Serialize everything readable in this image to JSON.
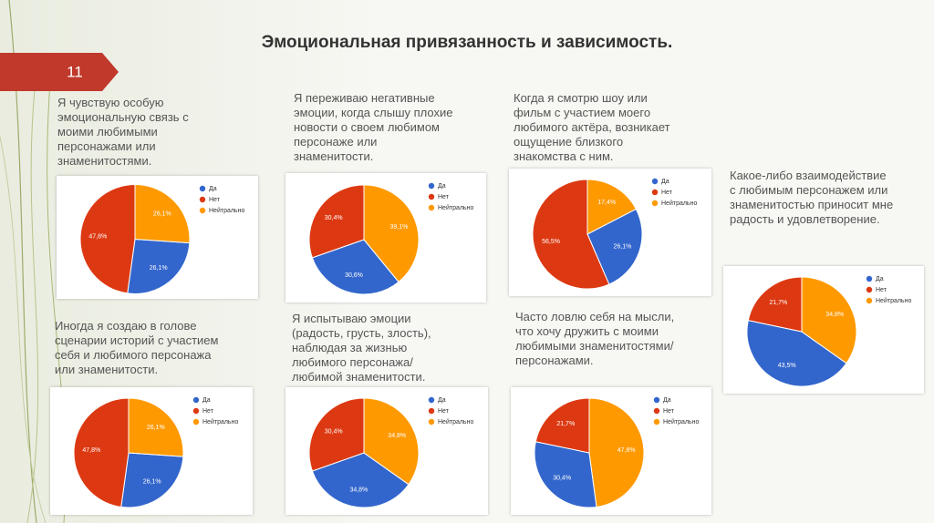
{
  "slide": {
    "title": "Эмоциональная привязанность и зависимость.",
    "number": "11"
  },
  "chart_data": [
    {
      "type": "pie",
      "title": "Я чувствую особую эмоциональную связь с моими любимыми персонажами или знаменитостями.",
      "categories": [
        "Да",
        "Нет",
        "Нейтрально"
      ],
      "values": [
        26.1,
        47.8,
        26.1
      ],
      "value_labels": [
        "26,1%",
        "47,8%",
        "26,1%"
      ],
      "colors": [
        "#3366cc",
        "#dc3912",
        "#ff9900"
      ]
    },
    {
      "type": "pie",
      "title": "Я переживаю негативные эмоции, когда слышу плохие новости о своем любимом персонаже или знаменитости.",
      "categories": [
        "Да",
        "Нет",
        "Нейтрально"
      ],
      "values": [
        30.6,
        30.4,
        39.1
      ],
      "value_labels": [
        "30,6%",
        "30,4%",
        "39,1%"
      ],
      "colors": [
        "#3366cc",
        "#dc3912",
        "#ff9900"
      ]
    },
    {
      "type": "pie",
      "title": "Когда я смотрю шоу или фильм с участием моего любимого актёра, возникает ощущение близкого знакомства с ним.",
      "categories": [
        "Да",
        "Нет",
        "Нейтрально"
      ],
      "values": [
        26.1,
        56.5,
        17.4
      ],
      "value_labels": [
        "26,1%",
        "56,5%",
        "17,4%"
      ],
      "colors": [
        "#3366cc",
        "#dc3912",
        "#ff9900"
      ]
    },
    {
      "type": "pie",
      "title": "Какое-либо взаимодействие с любимым персонажем или знаменитостью приносит мне радость и удовлетворение.",
      "categories": [
        "Да",
        "Нет",
        "Нейтрально"
      ],
      "values": [
        43.5,
        21.7,
        34.8
      ],
      "value_labels": [
        "43,5%",
        "21,7%",
        "34,8%"
      ],
      "colors": [
        "#3366cc",
        "#dc3912",
        "#ff9900"
      ]
    },
    {
      "type": "pie",
      "title": "Иногда я создаю в голове сценарии историй с участием себя и любимого персонажа или знаменитости.",
      "categories": [
        "Да",
        "Нет",
        "Нейтрально"
      ],
      "values": [
        26.1,
        47.8,
        26.1
      ],
      "value_labels": [
        "26,1%",
        "47,8%",
        "26,1%"
      ],
      "colors": [
        "#3366cc",
        "#dc3912",
        "#ff9900"
      ]
    },
    {
      "type": "pie",
      "title": "Я испытываю эмоции (радость, грусть, злость), наблюдая за жизнью любимого персонажа/любимой знаменитости.",
      "categories": [
        "Да",
        "Нет",
        "Нейтрально"
      ],
      "values": [
        34.8,
        30.4,
        34.8
      ],
      "value_labels": [
        "34,8%",
        "30,4%",
        "34,8%"
      ],
      "colors": [
        "#3366cc",
        "#dc3912",
        "#ff9900"
      ]
    },
    {
      "type": "pie",
      "title": "Часто ловлю себя на мысли, что хочу дружить с моими любимыми знаменитостями/персонажами.",
      "categories": [
        "Да",
        "Нет",
        "Нейтрально"
      ],
      "values": [
        30.4,
        21.7,
        47.8
      ],
      "value_labels": [
        "30,4%",
        "21,7%",
        "47,8%"
      ],
      "colors": [
        "#3366cc",
        "#dc3912",
        "#ff9900"
      ]
    }
  ]
}
